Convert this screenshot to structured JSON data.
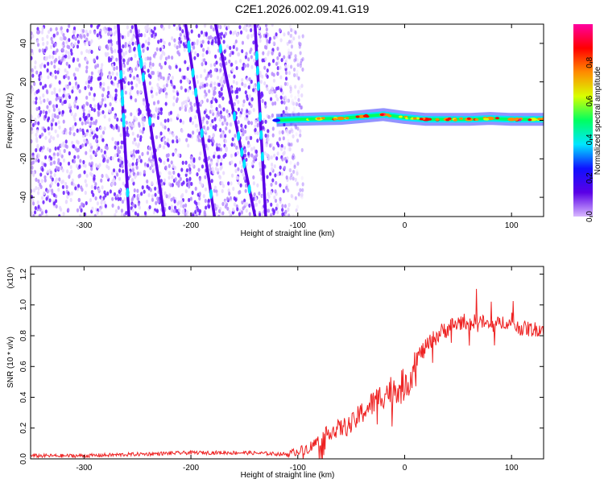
{
  "title": "C2E1.2026.002.09.41.G19",
  "chart_data": [
    {
      "type": "heatmap",
      "panel": "spectrogram",
      "xlabel": "Height of straight line (km)",
      "ylabel": "Frequency (Hz)",
      "xlim": [
        -350,
        130
      ],
      "ylim": [
        -50,
        50
      ],
      "xticks": [
        -300,
        -200,
        -100,
        0,
        100
      ],
      "yticks": [
        -40,
        -20,
        0,
        20,
        40
      ],
      "colorbar": {
        "label": "Normalized spectral amplitude",
        "range": [
          0,
          1
        ],
        "ticks": [
          "0.0",
          "0.2",
          "0.4",
          "0.6",
          "0.8"
        ],
        "colors": [
          "#d8b8ff",
          "#5a00e6",
          "#1010ff",
          "#00e6ff",
          "#00ff60",
          "#d8ff00",
          "#ff8c00",
          "#ff0000",
          "#ff00a0"
        ]
      },
      "carrier_line": {
        "x": [
          -120,
          -100,
          -80,
          -60,
          -40,
          -20,
          0,
          20,
          40,
          60,
          80,
          100,
          120,
          130
        ],
        "freq": [
          0,
          0.5,
          0.8,
          1.0,
          2.0,
          3.0,
          1.5,
          0.5,
          0.5,
          0.5,
          1.0,
          0.5,
          0.5,
          0.5
        ],
        "amplitude": [
          0.3,
          0.5,
          0.6,
          0.7,
          0.75,
          0.8,
          0.55,
          0.85,
          0.7,
          0.75,
          0.7,
          0.8,
          0.65,
          0.6
        ]
      },
      "streaks": [
        {
          "x_top": -252,
          "x_bottom": -225
        },
        {
          "x_top": -177,
          "x_bottom": -140
        },
        {
          "x_top": -140,
          "x_bottom": -130
        },
        {
          "x_top": -268,
          "x_bottom": -258
        },
        {
          "x_top": -205,
          "x_bottom": -178
        }
      ]
    },
    {
      "type": "line",
      "panel": "snr",
      "xlabel": "Height of straight line (km)",
      "ylabel": "SNR (10 * v/v)",
      "y_multiplier": "(x10⁴)",
      "xlim": [
        -350,
        130
      ],
      "ylim": [
        0,
        1.25
      ],
      "xticks": [
        -300,
        -200,
        -100,
        0,
        100
      ],
      "yticks": [
        "0.0",
        "0.2",
        "0.4",
        "0.6",
        "0.8",
        "1.0",
        "1.2"
      ],
      "color": "#ee2222",
      "series": [
        {
          "x": [
            -350,
            -300,
            -250,
            -200,
            -150,
            -110,
            -100,
            -90,
            -80,
            -70,
            -60,
            -50,
            -40,
            -30,
            -20,
            -10,
            0,
            5,
            10,
            20,
            30,
            40,
            50,
            55,
            60,
            70,
            80,
            90,
            95,
            100,
            110,
            120,
            130
          ],
          "y": [
            0.02,
            0.02,
            0.03,
            0.04,
            0.04,
            0.03,
            0.05,
            0.07,
            0.12,
            0.18,
            0.2,
            0.22,
            0.3,
            0.36,
            0.42,
            0.46,
            0.48,
            0.52,
            0.65,
            0.72,
            0.8,
            0.85,
            0.88,
            0.9,
            0.88,
            0.9,
            0.86,
            0.88,
            0.9,
            0.86,
            0.85,
            0.84,
            0.85
          ]
        }
      ]
    }
  ]
}
